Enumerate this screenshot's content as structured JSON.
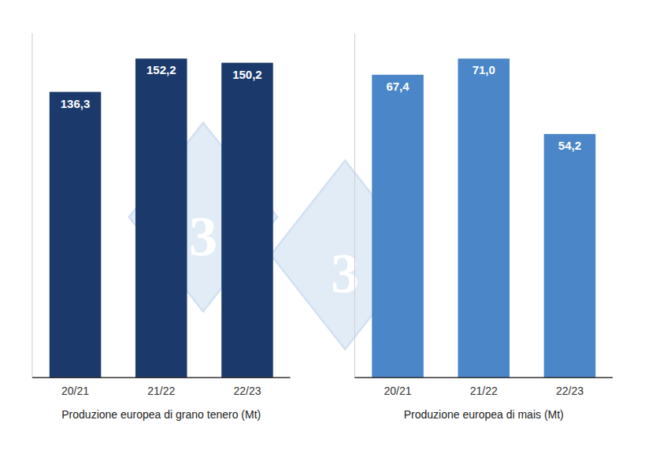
{
  "chart_data": [
    {
      "type": "bar",
      "xlabel": "Produzione europea di grano tenero (Mt)",
      "categories": [
        "20/21",
        "21/22",
        "22/23"
      ],
      "values": [
        136.3,
        152.2,
        150.2
      ],
      "value_labels": [
        "136,3",
        "152,2",
        "150,2"
      ],
      "color": "#1B3A6B",
      "ylim": [
        0,
        164.376
      ],
      "data_labels": true,
      "tick_labels": "x",
      "grid": false,
      "annotations": [
        "3"
      ]
    },
    {
      "type": "bar",
      "xlabel": "Produzione europea di mais (Mt)",
      "categories": [
        "20/21",
        "21/22",
        "22/23"
      ],
      "values": [
        67.4,
        71.0,
        54.2
      ],
      "value_labels": [
        "67,4",
        "71,0",
        "54,2"
      ],
      "color": "#4A86C8",
      "ylim": [
        0,
        76.68
      ],
      "data_labels": true,
      "tick_labels": "x",
      "grid": false,
      "annotations": [
        "3"
      ]
    }
  ]
}
